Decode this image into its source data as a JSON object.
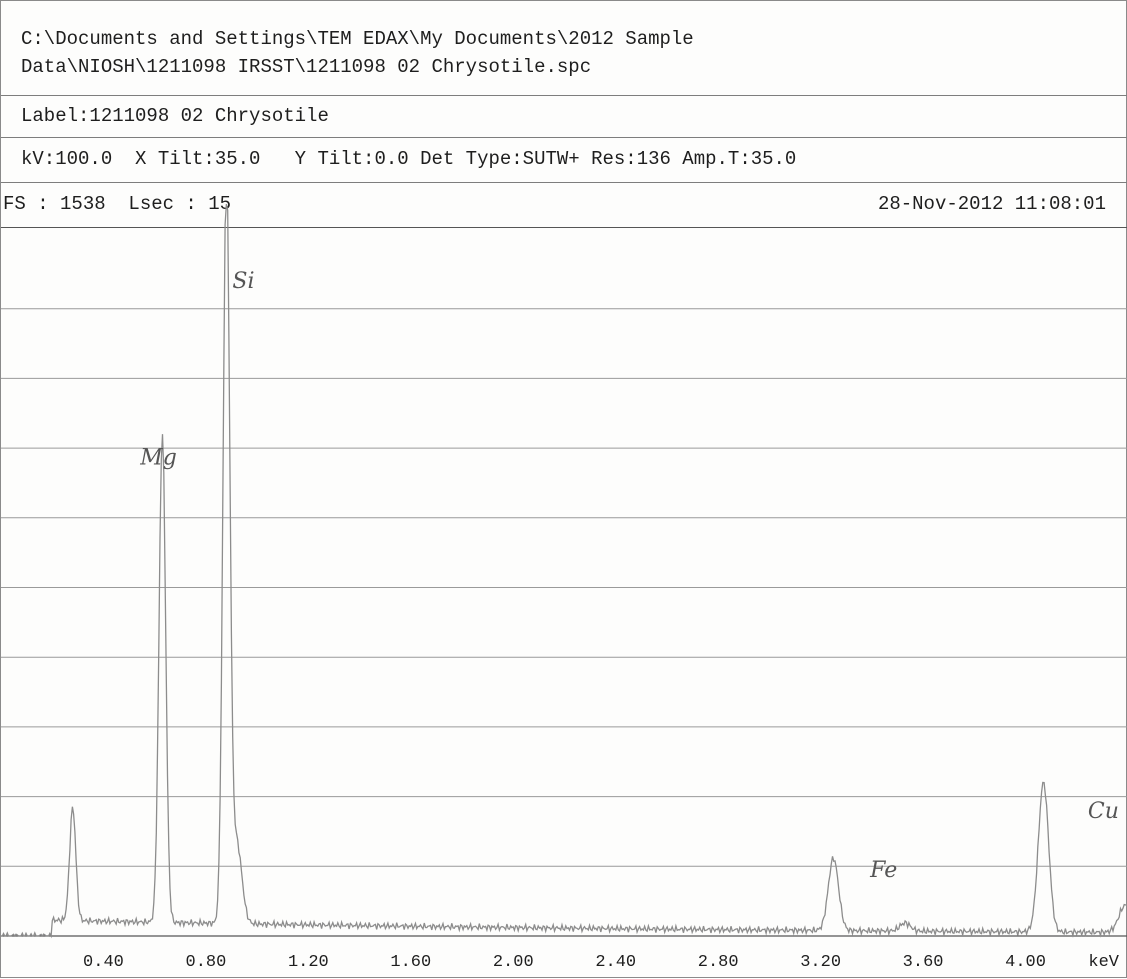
{
  "header": {
    "path_line1": "C:\\Documents and Settings\\TEM EDAX\\My Documents\\2012 Sample",
    "path_line2": "Data\\NIOSH\\1211098 IRSST\\1211098 02 Chrysotile.spc",
    "label": "Label:1211098 02 Chrysotile",
    "params": "kV:100.0  X Tilt:35.0   Y Tilt:0.0 Det Type:SUTW+ Res:136 Amp.T:35.0",
    "fs_lsec": "FS : 1538  Lsec : 15",
    "datetime": "28-Nov-2012 11:08:01"
  },
  "colors": {
    "trace": "#8c8c8c",
    "grid": "#9a9a9a",
    "text": "#1e1e1e",
    "annotation": "#555555"
  },
  "chart_data": {
    "type": "line",
    "title": "",
    "xlabel": "keV",
    "ylabel": "",
    "xlim": [
      0.0,
      4.4
    ],
    "ylim": [
      0,
      1538
    ],
    "x_ticks": [
      0.4,
      0.8,
      1.2,
      1.6,
      2.0,
      2.4,
      2.8,
      3.2,
      3.6,
      4.0
    ],
    "x_tick_labels": [
      "0.40",
      "0.80",
      "1.20",
      "1.60",
      "2.00",
      "2.40",
      "2.80",
      "3.20",
      "3.60",
      "4.00"
    ],
    "grid": "horizontal",
    "y_gridlines": 10,
    "background_counts": 35,
    "peaks": [
      {
        "energy": 0.28,
        "counts": 250,
        "width": 0.012
      },
      {
        "energy": 0.63,
        "counts": 1080,
        "width": 0.013
      },
      {
        "energy": 0.88,
        "counts": 1640,
        "width": 0.013
      },
      {
        "energy": 0.92,
        "counts": 180,
        "width": 0.02
      },
      {
        "energy": 3.25,
        "counts": 160,
        "width": 0.02
      },
      {
        "energy": 3.53,
        "counts": 18,
        "width": 0.02
      },
      {
        "energy": 4.07,
        "counts": 330,
        "width": 0.02
      },
      {
        "energy": 4.39,
        "counts": 60,
        "width": 0.025
      }
    ],
    "annotations": [
      {
        "text": "Si",
        "energy": 0.88,
        "counts": 1430
      },
      {
        "text": "Mg",
        "energy": 0.52,
        "counts": 1040
      },
      {
        "text": "Fe",
        "energy": 3.37,
        "counts": 130
      },
      {
        "text": "Cu",
        "energy": 4.22,
        "counts": 260
      }
    ]
  }
}
